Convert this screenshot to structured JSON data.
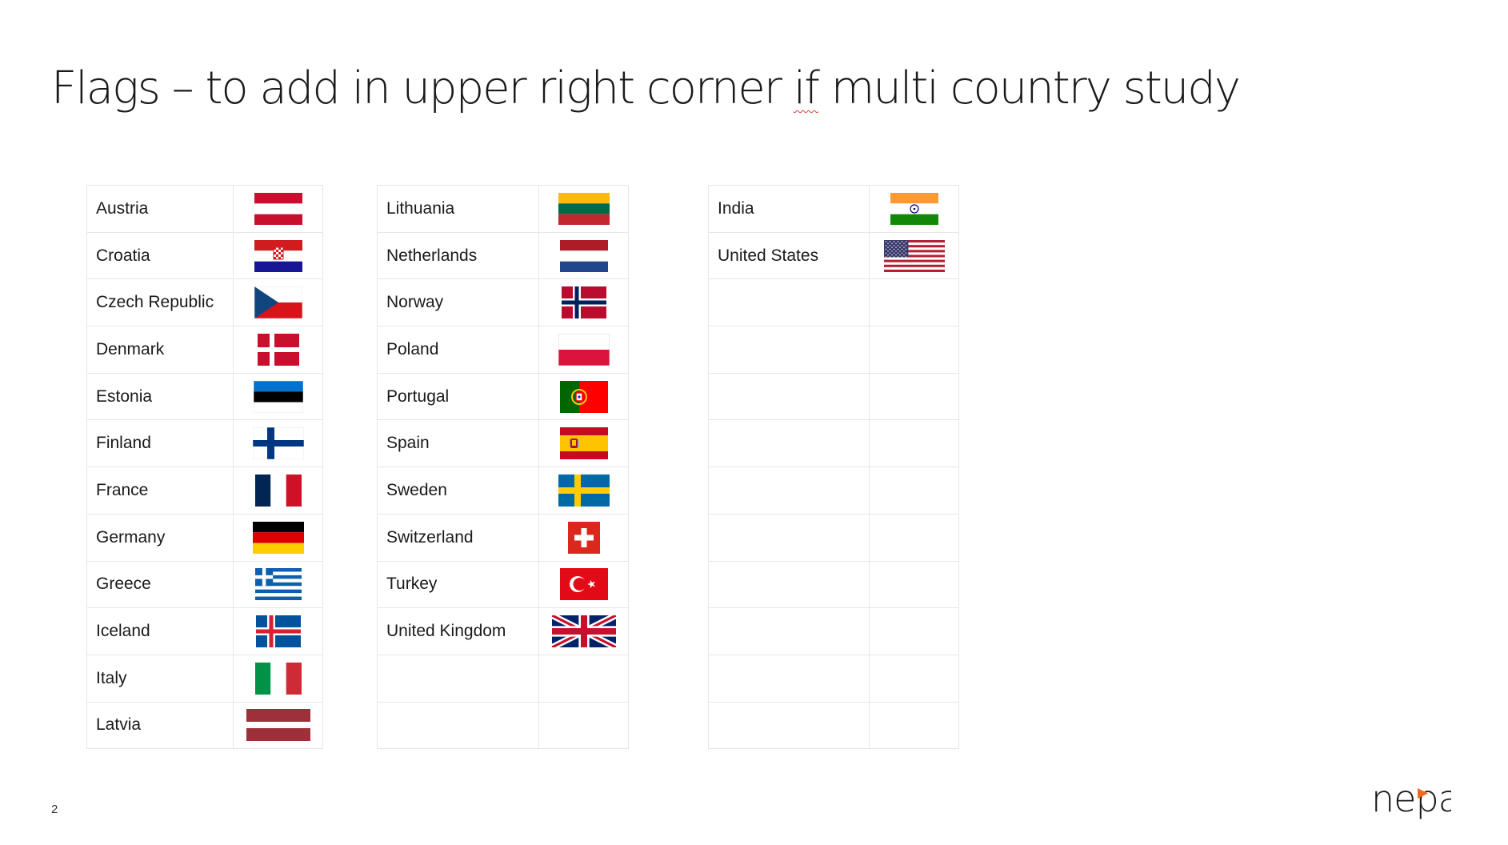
{
  "slide": {
    "title_before": "Flags – to add in upper right corner ",
    "title_marked": "if",
    "title_after": " multi country study",
    "page_number": "2",
    "logo_text": "nepa"
  },
  "colors": {
    "logo_dot": "#f06a1d",
    "grid_line": "#e6e6e6"
  },
  "table1": [
    {
      "name": "Austria",
      "flag": "austria-flag-icon"
    },
    {
      "name": "Croatia",
      "flag": "croatia-flag-icon"
    },
    {
      "name": "Czech Republic",
      "flag": "czech-republic-flag-icon"
    },
    {
      "name": "Denmark",
      "flag": "denmark-flag-icon"
    },
    {
      "name": "Estonia",
      "flag": "estonia-flag-icon"
    },
    {
      "name": "Finland",
      "flag": "finland-flag-icon"
    },
    {
      "name": "France",
      "flag": "france-flag-icon"
    },
    {
      "name": "Germany",
      "flag": "germany-flag-icon"
    },
    {
      "name": "Greece",
      "flag": "greece-flag-icon"
    },
    {
      "name": "Iceland",
      "flag": "iceland-flag-icon"
    },
    {
      "name": "Italy",
      "flag": "italy-flag-icon"
    },
    {
      "name": "Latvia",
      "flag": "latvia-flag-icon"
    }
  ],
  "table2": [
    {
      "name": "Lithuania",
      "flag": "lithuania-flag-icon"
    },
    {
      "name": "Netherlands",
      "flag": "netherlands-flag-icon"
    },
    {
      "name": "Norway",
      "flag": "norway-flag-icon"
    },
    {
      "name": "Poland",
      "flag": "poland-flag-icon"
    },
    {
      "name": "Portugal",
      "flag": "portugal-flag-icon"
    },
    {
      "name": "Spain",
      "flag": "spain-flag-icon"
    },
    {
      "name": "Sweden",
      "flag": "sweden-flag-icon"
    },
    {
      "name": "Switzerland",
      "flag": "switzerland-flag-icon"
    },
    {
      "name": "Turkey",
      "flag": "turkey-flag-icon"
    },
    {
      "name": "United Kingdom",
      "flag": "united-kingdom-flag-icon"
    },
    {
      "name": "",
      "flag": ""
    },
    {
      "name": "",
      "flag": ""
    }
  ],
  "table3": [
    {
      "name": "India",
      "flag": "india-flag-icon"
    },
    {
      "name": "United States",
      "flag": "united-states-flag-icon"
    },
    {
      "name": "",
      "flag": ""
    },
    {
      "name": "",
      "flag": ""
    },
    {
      "name": "",
      "flag": ""
    },
    {
      "name": "",
      "flag": ""
    },
    {
      "name": "",
      "flag": ""
    },
    {
      "name": "",
      "flag": ""
    },
    {
      "name": "",
      "flag": ""
    },
    {
      "name": "",
      "flag": ""
    },
    {
      "name": "",
      "flag": ""
    },
    {
      "name": "",
      "flag": ""
    }
  ]
}
